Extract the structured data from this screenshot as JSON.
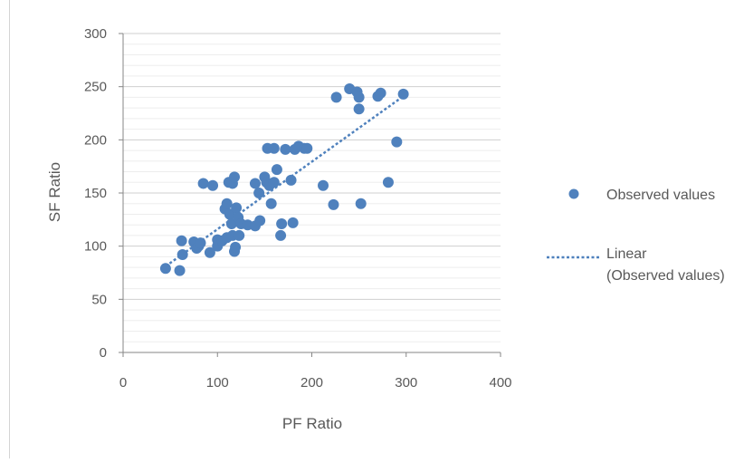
{
  "chart_data": {
    "type": "scatter",
    "title": "",
    "xlabel": "PF Ratio",
    "ylabel": "SF Ratio",
    "xlim": [
      0,
      400
    ],
    "ylim": [
      0,
      300
    ],
    "xticks": [
      0,
      100,
      200,
      300,
      400
    ],
    "yticks": [
      0,
      50,
      100,
      150,
      200,
      250,
      300
    ],
    "grid": true,
    "legend_position": "right",
    "series": [
      {
        "name": "Observed values",
        "kind": "points",
        "color": "#4f81bd",
        "points": [
          [
            45,
            79
          ],
          [
            60,
            77
          ],
          [
            62,
            105
          ],
          [
            63,
            92
          ],
          [
            75,
            104
          ],
          [
            78,
            98
          ],
          [
            80,
            100
          ],
          [
            82,
            103
          ],
          [
            85,
            159
          ],
          [
            92,
            94
          ],
          [
            95,
            157
          ],
          [
            100,
            100
          ],
          [
            100,
            106
          ],
          [
            105,
            105
          ],
          [
            108,
            135
          ],
          [
            110,
            140
          ],
          [
            110,
            108
          ],
          [
            112,
            160
          ],
          [
            113,
            130
          ],
          [
            115,
            121
          ],
          [
            116,
            159
          ],
          [
            116,
            110
          ],
          [
            118,
            165
          ],
          [
            118,
            95
          ],
          [
            119,
            99
          ],
          [
            120,
            136
          ],
          [
            122,
            127
          ],
          [
            123,
            110
          ],
          [
            125,
            121
          ],
          [
            132,
            120
          ],
          [
            140,
            119
          ],
          [
            140,
            159
          ],
          [
            144,
            150
          ],
          [
            145,
            124
          ],
          [
            150,
            165
          ],
          [
            152,
            160
          ],
          [
            153,
            192
          ],
          [
            155,
            157
          ],
          [
            157,
            140
          ],
          [
            160,
            192
          ],
          [
            160,
            160
          ],
          [
            163,
            172
          ],
          [
            167,
            110
          ],
          [
            168,
            121
          ],
          [
            172,
            191
          ],
          [
            178,
            162
          ],
          [
            180,
            122
          ],
          [
            182,
            191
          ],
          [
            186,
            194
          ],
          [
            192,
            192
          ],
          [
            195,
            192
          ],
          [
            212,
            157
          ],
          [
            223,
            139
          ],
          [
            226,
            240
          ],
          [
            240,
            248
          ],
          [
            248,
            245
          ],
          [
            250,
            240
          ],
          [
            250,
            229
          ],
          [
            252,
            140
          ],
          [
            270,
            241
          ],
          [
            273,
            244
          ],
          [
            281,
            160
          ],
          [
            290,
            198
          ],
          [
            297,
            243
          ]
        ]
      },
      {
        "name": "Linear (Observed values)",
        "kind": "trendline",
        "color": "#4f81bd",
        "line": {
          "x": [
            45,
            297
          ],
          "y": [
            81,
            241
          ]
        }
      }
    ]
  }
}
